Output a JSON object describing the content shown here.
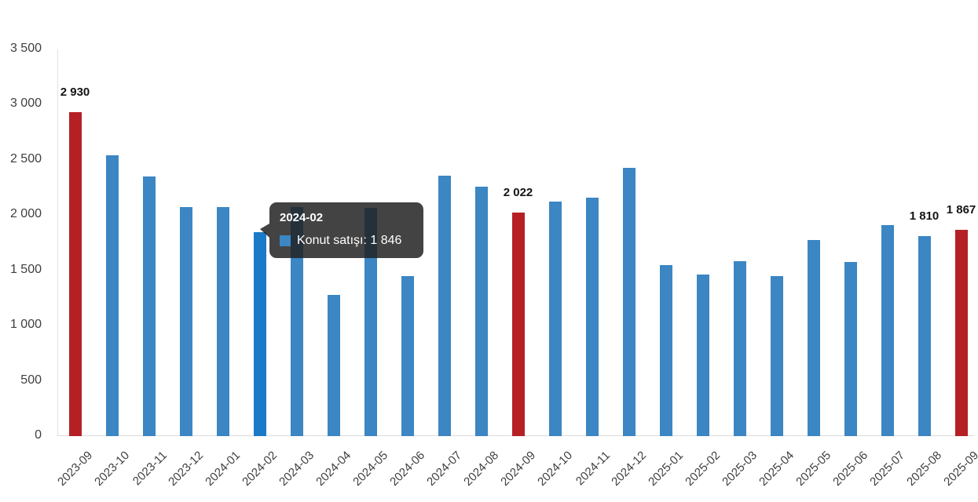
{
  "chart_data": {
    "type": "bar",
    "title": "",
    "categories": [
      "2023-09",
      "2023-10",
      "2023-11",
      "2023-12",
      "2024-01",
      "2024-02",
      "2024-03",
      "2024-04",
      "2024-05",
      "2024-06",
      "2024-07",
      "2024-08",
      "2024-09",
      "2024-10",
      "2024-11",
      "2024-12",
      "2025-01",
      "2025-02",
      "2025-03",
      "2025-04",
      "2025-05",
      "2025-06",
      "2025-07",
      "2025-08",
      "2025-09"
    ],
    "series": [
      {
        "name": "Konut satışı",
        "values": [
          2930,
          2540,
          2350,
          2075,
          2075,
          1846,
          2070,
          1280,
          2065,
          1445,
          2355,
          2260,
          2022,
          2125,
          2155,
          2425,
          1550,
          1465,
          1580,
          1445,
          1775,
          1575,
          1910,
          1810,
          1867
        ]
      }
    ],
    "xlabel": "",
    "ylabel": "",
    "ylim": [
      0,
      3500
    ],
    "ytick_interval": 500,
    "y_tick_labels": [
      "0",
      "500",
      "1 000",
      "1 500",
      "2 000",
      "2 500",
      "3 000",
      "3 500"
    ],
    "grid": false,
    "legend_position": "none",
    "colors": {
      "bar_default": "#3b86c3",
      "bar_red_highlight": "#b52025",
      "bar_hover": "#1b7ac8"
    },
    "red_indices": [
      0,
      12,
      24
    ],
    "hover_index": 5,
    "data_labels": [
      {
        "index": 0,
        "text": "2 930"
      },
      {
        "index": 12,
        "text": "2 022"
      },
      {
        "index": 23,
        "text": "1 810"
      },
      {
        "index": 24,
        "text": "1 867"
      }
    ]
  },
  "tooltip": {
    "title": "2024-02",
    "series_name": "Konut satışı",
    "value": "1 846",
    "value_text": "Konut satışı: 1 846",
    "marker_color": "#3b86c3"
  }
}
